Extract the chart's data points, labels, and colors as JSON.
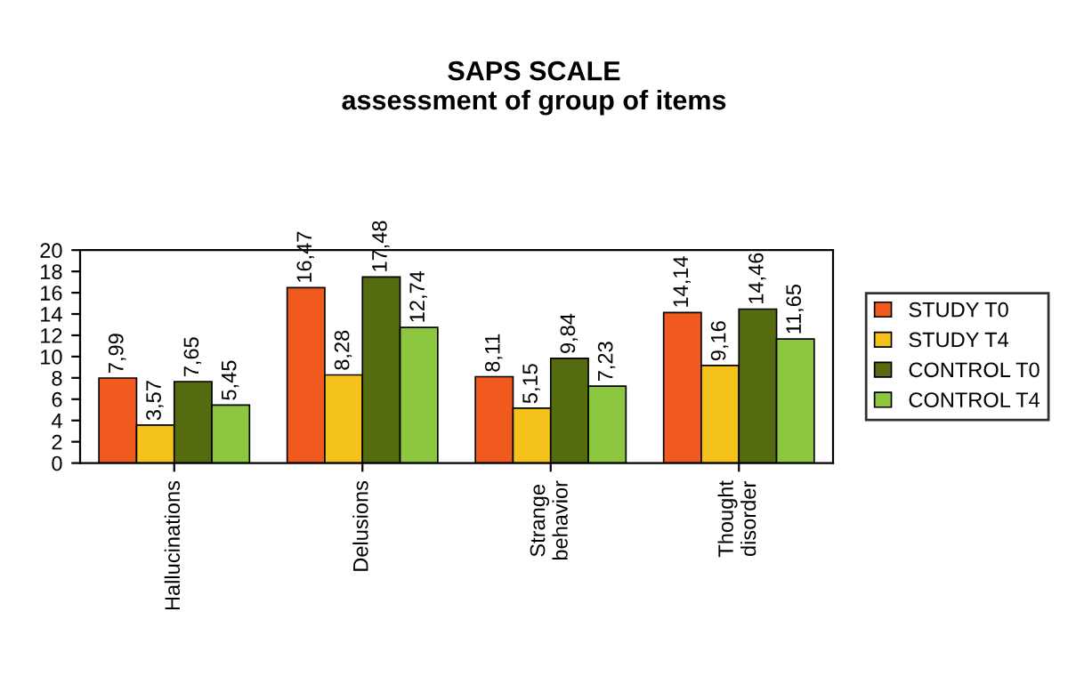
{
  "chart_data": {
    "type": "bar",
    "title": "SAPS SCALE\nassessment of group of items",
    "categories": [
      "Hallucinations",
      "Delusions",
      "Strange\nbehavior",
      "Thought\ndisorder"
    ],
    "series": [
      {
        "name": "STUDY T0",
        "color": "#f05a1e",
        "values": [
          7.99,
          16.47,
          8.11,
          14.14
        ],
        "value_labels": [
          "7,99",
          "16,47",
          "8,11",
          "14,14"
        ]
      },
      {
        "name": "STUDY T4",
        "color": "#f5c21b",
        "values": [
          3.57,
          8.28,
          5.15,
          9.16
        ],
        "value_labels": [
          "3,57",
          "8,28",
          "5,15",
          "9,16"
        ]
      },
      {
        "name": "CONTROL T0",
        "color": "#546b10",
        "values": [
          7.65,
          17.48,
          9.84,
          14.46
        ],
        "value_labels": [
          "7,65",
          "17,48",
          "9,84",
          "14,46"
        ]
      },
      {
        "name": "CONTROL T4",
        "color": "#8dc63f",
        "values": [
          5.45,
          12.74,
          7.23,
          11.65
        ],
        "value_labels": [
          "5,45",
          "12,74",
          "7,23",
          "11,65"
        ]
      }
    ],
    "ylim": [
      0,
      20
    ],
    "yticks": [
      0,
      2,
      4,
      6,
      8,
      10,
      12,
      14,
      16,
      18,
      20
    ],
    "grid": false,
    "legend": "right"
  }
}
